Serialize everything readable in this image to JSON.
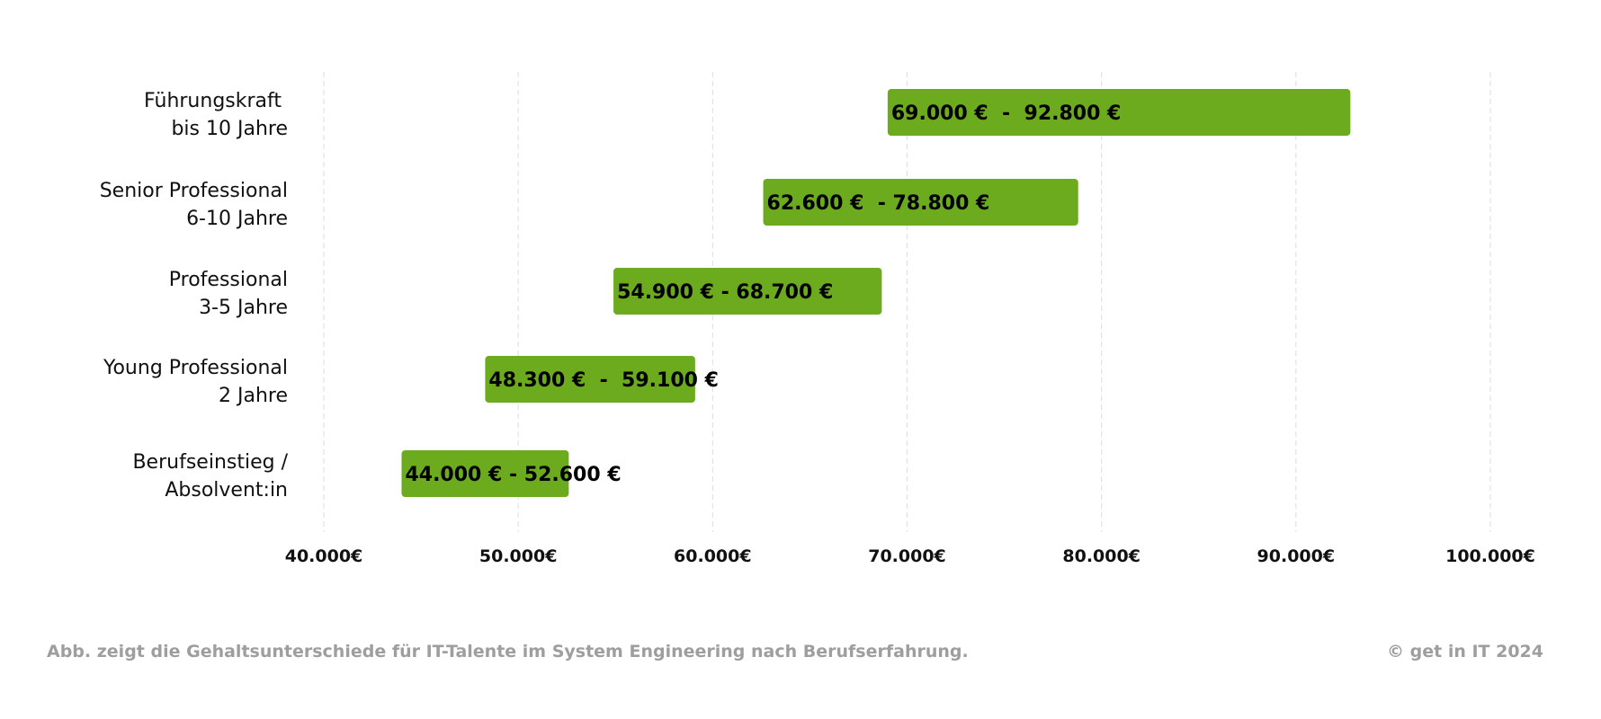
{
  "colors": {
    "bar": "#6cab1e",
    "grid": "#dcdcdc",
    "footer": "#9e9e9e"
  },
  "chart_data": {
    "type": "bar",
    "orientation": "horizontal-range",
    "categories": [
      [
        "Führungskraft ",
        "bis 10 Jahre"
      ],
      [
        "Senior Professional",
        "6-10 Jahre"
      ],
      [
        "Professional",
        "3-5 Jahre"
      ],
      [
        "Young Professional",
        "2 Jahre"
      ],
      [
        "Berufseinstieg /",
        "Absolvent:in"
      ]
    ],
    "ranges": [
      [
        69000,
        92800
      ],
      [
        62600,
        78800
      ],
      [
        54900,
        68700
      ],
      [
        48300,
        59100
      ],
      [
        44000,
        52600
      ]
    ],
    "data_labels": [
      "69.000 €  -  92.800 €",
      "62.600 €  - 78.800 €",
      "54.900 € - 68.700 €",
      "48.300 €  -  59.100 €",
      "44.000 € - 52.600 €"
    ],
    "xlim": [
      40000,
      100000
    ],
    "xticks": [
      40000,
      50000,
      60000,
      70000,
      80000,
      90000,
      100000
    ],
    "xtick_labels": [
      "40.000€",
      "50.000€",
      "60.000€",
      "70.000€",
      "80.000€",
      "90.000€",
      "100.000€"
    ],
    "grid": true,
    "legend": "none"
  },
  "footer": {
    "caption": "Abb. zeigt die Gehaltsunterschiede für IT-Talente im System Engineering nach Berufserfahrung.",
    "copyright": "© get in IT 2024"
  }
}
